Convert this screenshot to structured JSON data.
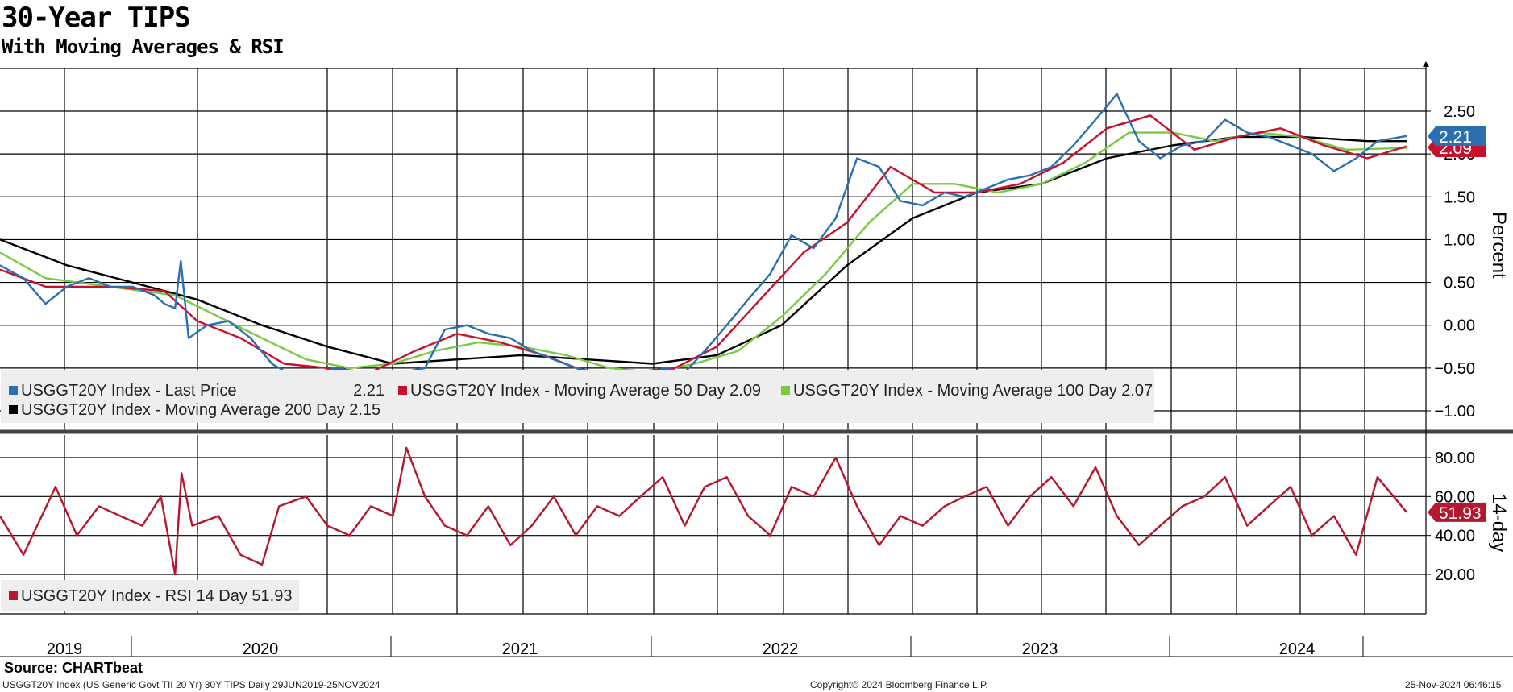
{
  "header": {
    "title": "30-Year TIPS",
    "subtitle": "With Moving Averages & RSI"
  },
  "footer": {
    "source": "Source: CHARTbeat",
    "description": "USGGT20Y Index (US Generic Govt TII 20 Yr) 30Y TIPS  Daily 29JUN2019-25NOV2024",
    "copyright": "Copyright© 2024 Bloomberg Finance L.P.",
    "timestamp": "25-Nov-2024 06:46:15"
  },
  "colors": {
    "last_price": "#2a6fb0",
    "ma50": "#c8102e",
    "ma100": "#7ac943",
    "ma200": "#000000",
    "rsi": "#b5172d",
    "legend_bg": "#eeeeee"
  },
  "legend_top": [
    {
      "id": "last",
      "label": "USGGT20Y Index - Last Price",
      "value": "2.21",
      "color": "#2a6fb0"
    },
    {
      "id": "ma50",
      "label": "USGGT20Y Index - Moving Average 50 Day 2.09",
      "color": "#c8102e"
    },
    {
      "id": "ma100",
      "label": "USGGT20Y Index - Moving Average 100 Day 2.07",
      "color": "#7ac943"
    },
    {
      "id": "ma200",
      "label": "USGGT20Y Index - Moving Average 200 Day 2.15",
      "color": "#000000"
    }
  ],
  "legend_bottom": [
    {
      "id": "rsi",
      "label": "USGGT20Y Index - RSI 14 Day 51.93",
      "color": "#b5172d"
    }
  ],
  "chart_data": [
    {
      "type": "line",
      "panel": "price",
      "ylabel": "Percent",
      "ylim": [
        -1.0,
        2.5
      ],
      "y_ticks": [
        "2.50",
        "2.00",
        "1.50",
        "1.00",
        "0.50",
        "0.00",
        "-0.50",
        "-1.00"
      ],
      "x_labels": [
        "2019",
        "2020",
        "2021",
        "2022",
        "2023",
        "2024"
      ],
      "x_range": [
        "2019-06-29",
        "2024-11-25"
      ],
      "grid": true,
      "legend_position": "bottom-left",
      "last_value_tags": [
        {
          "series": "Last Price",
          "value": "2.21",
          "color": "#2a6fb0"
        },
        {
          "series": "Moving Average 50 Day",
          "value": "2.09",
          "color": "#c8102e"
        }
      ],
      "series": [
        {
          "name": "USGGT20Y Index - Last Price",
          "color": "#2a6fb0",
          "x": [
            "2019-06-29",
            "2019-08-01",
            "2019-09-01",
            "2019-10-01",
            "2019-11-01",
            "2019-12-01",
            "2020-01-01",
            "2020-02-01",
            "2020-02-15",
            "2020-03-01",
            "2020-03-09",
            "2020-03-20",
            "2020-04-15",
            "2020-05-15",
            "2020-06-15",
            "2020-07-15",
            "2020-08-15",
            "2020-09-15",
            "2020-10-15",
            "2020-11-15",
            "2020-12-15",
            "2021-01-15",
            "2021-02-15",
            "2021-03-15",
            "2021-04-15",
            "2021-05-15",
            "2021-06-15",
            "2021-07-15",
            "2021-08-15",
            "2021-09-15",
            "2021-10-15",
            "2021-11-15",
            "2021-12-15",
            "2022-01-15",
            "2022-02-15",
            "2022-03-15",
            "2022-04-15",
            "2022-05-15",
            "2022-06-15",
            "2022-07-15",
            "2022-08-15",
            "2022-09-15",
            "2022-10-15",
            "2022-11-15",
            "2022-12-15",
            "2023-01-15",
            "2023-02-15",
            "2023-03-15",
            "2023-04-15",
            "2023-05-15",
            "2023-06-15",
            "2023-07-15",
            "2023-08-15",
            "2023-09-15",
            "2023-10-15",
            "2023-11-15",
            "2023-12-15",
            "2024-01-15",
            "2024-02-15",
            "2024-03-15",
            "2024-04-15",
            "2024-05-15",
            "2024-06-15",
            "2024-07-15",
            "2024-08-15",
            "2024-09-15",
            "2024-10-15",
            "2024-11-25"
          ],
          "values": [
            0.7,
            0.55,
            0.25,
            0.45,
            0.55,
            0.45,
            0.45,
            0.35,
            0.25,
            0.2,
            0.75,
            -0.15,
            0.0,
            0.05,
            -0.15,
            -0.45,
            -0.6,
            -0.55,
            -0.5,
            -0.55,
            -0.6,
            -0.55,
            -0.5,
            -0.05,
            0.0,
            -0.1,
            -0.15,
            -0.3,
            -0.4,
            -0.5,
            -0.55,
            -0.6,
            -0.65,
            -0.5,
            -0.55,
            -0.3,
            0.0,
            0.3,
            0.6,
            1.05,
            0.9,
            1.25,
            1.95,
            1.85,
            1.45,
            1.4,
            1.55,
            1.5,
            1.6,
            1.7,
            1.75,
            1.85,
            2.1,
            2.4,
            2.7,
            2.15,
            1.95,
            2.1,
            2.15,
            2.4,
            2.25,
            2.2,
            2.1,
            2.0,
            1.8,
            1.95,
            2.15,
            2.21
          ]
        },
        {
          "name": "USGGT20Y Index - Moving Average 50 Day",
          "color": "#c8102e",
          "x": [
            "2019-06-29",
            "2019-09-01",
            "2019-12-01",
            "2020-02-15",
            "2020-04-01",
            "2020-06-01",
            "2020-08-01",
            "2020-10-01",
            "2020-12-01",
            "2021-02-01",
            "2021-04-01",
            "2021-06-01",
            "2021-08-01",
            "2021-10-01",
            "2021-12-01",
            "2022-02-01",
            "2022-04-01",
            "2022-06-01",
            "2022-08-01",
            "2022-10-01",
            "2022-12-01",
            "2023-02-01",
            "2023-04-01",
            "2023-06-01",
            "2023-08-01",
            "2023-10-01",
            "2023-12-01",
            "2024-02-01",
            "2024-04-01",
            "2024-06-01",
            "2024-08-01",
            "2024-10-01",
            "2024-11-25"
          ],
          "values": [
            0.65,
            0.45,
            0.45,
            0.4,
            0.05,
            -0.15,
            -0.45,
            -0.5,
            -0.55,
            -0.3,
            -0.1,
            -0.2,
            -0.35,
            -0.55,
            -0.55,
            -0.5,
            -0.25,
            0.3,
            0.85,
            1.2,
            1.85,
            1.55,
            1.55,
            1.65,
            1.9,
            2.3,
            2.45,
            2.05,
            2.2,
            2.3,
            2.1,
            1.95,
            2.09
          ]
        },
        {
          "name": "USGGT20Y Index - Moving Average 100 Day",
          "color": "#7ac943",
          "x": [
            "2019-06-29",
            "2019-09-01",
            "2019-12-01",
            "2020-03-01",
            "2020-05-01",
            "2020-07-01",
            "2020-09-01",
            "2020-11-01",
            "2021-01-01",
            "2021-03-01",
            "2021-05-01",
            "2021-07-01",
            "2021-09-01",
            "2021-11-01",
            "2022-01-01",
            "2022-03-01",
            "2022-05-01",
            "2022-07-01",
            "2022-09-01",
            "2022-11-01",
            "2023-01-01",
            "2023-03-01",
            "2023-05-01",
            "2023-07-01",
            "2023-09-01",
            "2023-11-01",
            "2024-01-01",
            "2024-03-01",
            "2024-05-01",
            "2024-07-01",
            "2024-09-01",
            "2024-11-25"
          ],
          "values": [
            0.85,
            0.55,
            0.45,
            0.35,
            0.1,
            -0.15,
            -0.4,
            -0.5,
            -0.45,
            -0.3,
            -0.2,
            -0.25,
            -0.35,
            -0.5,
            -0.55,
            -0.45,
            -0.3,
            0.1,
            0.6,
            1.2,
            1.65,
            1.65,
            1.55,
            1.65,
            1.9,
            2.25,
            2.25,
            2.15,
            2.25,
            2.2,
            2.05,
            2.07
          ]
        },
        {
          "name": "USGGT20Y Index - Moving Average 200 Day",
          "color": "#000000",
          "x": [
            "2019-06-29",
            "2019-10-01",
            "2020-01-01",
            "2020-04-01",
            "2020-07-01",
            "2020-10-01",
            "2021-01-01",
            "2021-04-01",
            "2021-07-01",
            "2021-10-01",
            "2022-01-01",
            "2022-04-01",
            "2022-07-01",
            "2022-10-01",
            "2023-01-01",
            "2023-04-01",
            "2023-07-01",
            "2023-10-01",
            "2024-01-01",
            "2024-04-01",
            "2024-07-01",
            "2024-10-01",
            "2024-11-25"
          ],
          "values": [
            1.0,
            0.7,
            0.5,
            0.3,
            0.0,
            -0.25,
            -0.45,
            -0.4,
            -0.35,
            -0.4,
            -0.45,
            -0.35,
            0.0,
            0.7,
            1.25,
            1.55,
            1.65,
            1.95,
            2.1,
            2.2,
            2.2,
            2.15,
            2.15
          ]
        }
      ]
    },
    {
      "type": "line",
      "panel": "rsi",
      "ylabel": "14-day",
      "ylim": [
        10,
        90
      ],
      "y_ticks": [
        "80.00",
        "60.00",
        "40.00",
        "20.00"
      ],
      "x_range": [
        "2019-06-29",
        "2024-11-25"
      ],
      "grid": true,
      "legend_position": "bottom-left",
      "last_value_tags": [
        {
          "series": "RSI 14 Day",
          "value": "51.93",
          "color": "#b5172d"
        }
      ],
      "series": [
        {
          "name": "USGGT20Y Index - RSI 14 Day",
          "color": "#b5172d",
          "x": [
            "2019-06-29",
            "2019-08-01",
            "2019-09-15",
            "2019-10-15",
            "2019-11-15",
            "2019-12-15",
            "2020-01-15",
            "2020-02-10",
            "2020-03-01",
            "2020-03-10",
            "2020-03-25",
            "2020-05-01",
            "2020-06-01",
            "2020-07-01",
            "2020-07-25",
            "2020-09-01",
            "2020-10-01",
            "2020-11-01",
            "2020-12-01",
            "2021-01-01",
            "2021-01-20",
            "2021-02-15",
            "2021-03-15",
            "2021-04-15",
            "2021-05-15",
            "2021-06-15",
            "2021-07-15",
            "2021-08-15",
            "2021-09-15",
            "2021-10-15",
            "2021-11-15",
            "2021-12-15",
            "2022-01-15",
            "2022-02-15",
            "2022-03-15",
            "2022-04-15",
            "2022-05-15",
            "2022-06-15",
            "2022-07-15",
            "2022-08-15",
            "2022-09-15",
            "2022-10-15",
            "2022-11-15",
            "2022-12-15",
            "2023-01-15",
            "2023-02-15",
            "2023-03-15",
            "2023-04-15",
            "2023-05-15",
            "2023-06-15",
            "2023-07-15",
            "2023-08-15",
            "2023-09-15",
            "2023-10-15",
            "2023-11-15",
            "2023-12-15",
            "2024-01-15",
            "2024-02-15",
            "2024-03-15",
            "2024-04-15",
            "2024-05-15",
            "2024-06-15",
            "2024-07-15",
            "2024-08-15",
            "2024-09-15",
            "2024-10-15",
            "2024-11-25"
          ],
          "values": [
            50,
            30,
            65,
            40,
            55,
            50,
            45,
            60,
            20,
            72,
            45,
            50,
            30,
            25,
            55,
            60,
            45,
            40,
            55,
            50,
            85,
            60,
            45,
            40,
            55,
            35,
            45,
            60,
            40,
            55,
            50,
            60,
            70,
            45,
            65,
            70,
            50,
            40,
            65,
            60,
            80,
            55,
            35,
            50,
            45,
            55,
            60,
            65,
            45,
            60,
            70,
            55,
            75,
            50,
            35,
            45,
            55,
            60,
            70,
            45,
            55,
            65,
            40,
            50,
            30,
            70,
            51.93
          ]
        }
      ]
    }
  ]
}
